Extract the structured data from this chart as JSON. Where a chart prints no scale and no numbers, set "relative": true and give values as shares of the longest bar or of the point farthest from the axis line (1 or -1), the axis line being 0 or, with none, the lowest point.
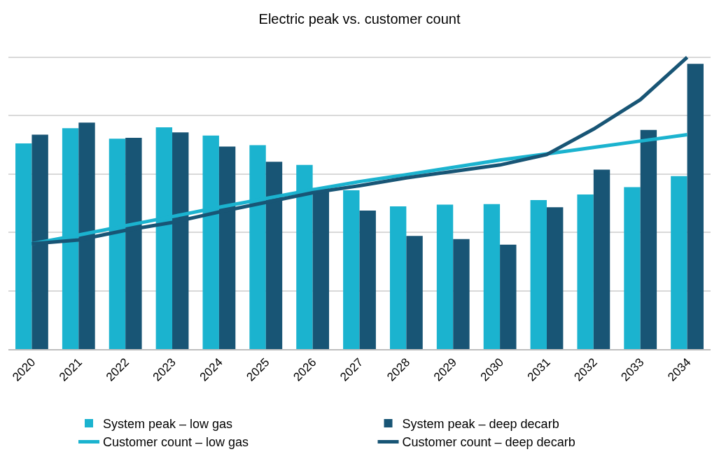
{
  "chart_data": {
    "type": "bar",
    "title": "Electric peak vs. customer count",
    "relative": true,
    "grid": "y",
    "legend": "bottom",
    "categories": [
      "2020",
      "2021",
      "2022",
      "2023",
      "2024",
      "2025",
      "2026",
      "2027",
      "2028",
      "2029",
      "2030",
      "2031",
      "2032",
      "2033",
      "2034"
    ],
    "series": [
      {
        "name": "System peak – low gas",
        "color": "#1bb3cf",
        "values": [
          0.705,
          0.757,
          0.721,
          0.76,
          0.732,
          0.699,
          0.631,
          0.544,
          0.489,
          0.495,
          0.497,
          0.511,
          0.53,
          0.555,
          0.593
        ]
      },
      {
        "name": "System peak – deep decarb",
        "color": "#185575",
        "values": [
          0.735,
          0.776,
          0.724,
          0.743,
          0.694,
          0.642,
          0.552,
          0.475,
          0.388,
          0.377,
          0.358,
          0.486,
          0.615,
          0.751,
          0.978
        ]
      },
      {
        "name": "Customer count – low gas",
        "type": "line",
        "color": "#1bb3cf",
        "values": [
          0.361,
          0.391,
          0.423,
          0.454,
          0.486,
          0.516,
          0.546,
          0.574,
          0.598,
          0.623,
          0.648,
          0.669,
          0.691,
          0.713,
          0.735
        ]
      },
      {
        "name": "Customer count – deep decarb",
        "type": "line",
        "color": "#185575",
        "values": [
          0.361,
          0.374,
          0.407,
          0.434,
          0.47,
          0.503,
          0.536,
          0.56,
          0.587,
          0.609,
          0.631,
          0.667,
          0.754,
          0.855,
          1
        ]
      }
    ]
  }
}
